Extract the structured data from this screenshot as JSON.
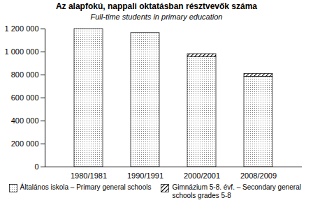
{
  "chart_data": {
    "type": "bar",
    "title": "Az alapfokú, nappali oktatásban résztvevők száma",
    "subtitle": "Full-time students  in primary education",
    "categories": [
      "1980/1981",
      "1990/1991",
      "2000/2001",
      "2008/2009"
    ],
    "series": [
      {
        "name": "Általános iskola – Primary general schools",
        "color": "#707070",
        "values": [
          1200000,
          1165000,
          955000,
          785000
        ]
      },
      {
        "name": "Gimnázium 5-8. évf. – Secondary general schools grades 5-8",
        "color": "#000000",
        "values": [
          0,
          0,
          27000,
          25000
        ]
      }
    ],
    "stacked": true,
    "ylim": [
      0,
      1200000
    ],
    "yticks": [
      0,
      {
        "value": 200000,
        "label": "200 000"
      },
      {
        "value": 400000,
        "label": "400 000"
      },
      {
        "value": 600000,
        "label": "600 000"
      },
      {
        "value": 800000,
        "label": "800 000"
      },
      {
        "value": 1000000,
        "label": "1 000 000"
      },
      {
        "value": 1200000,
        "label": "1 200 000"
      }
    ],
    "grid": false,
    "legend": "bottom"
  }
}
